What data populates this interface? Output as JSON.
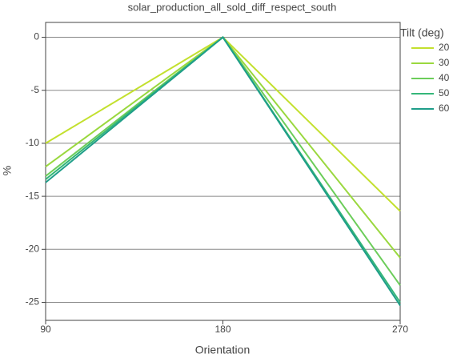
{
  "chart_data": {
    "type": "line",
    "title": "solar_production_all_sold_diff_respect_south",
    "x_label": "Orientation",
    "y_label": "%",
    "x": [
      90,
      180,
      270
    ],
    "legend_title": "Tilt (deg)",
    "series": [
      {
        "name": "20",
        "color": "#c3e02e",
        "values": [
          -10,
          0,
          -16.4
        ]
      },
      {
        "name": "30",
        "color": "#9ad83e",
        "values": [
          -12.2,
          0,
          -20.8
        ]
      },
      {
        "name": "40",
        "color": "#6ccd5a",
        "values": [
          -13.1,
          0,
          -23.4
        ]
      },
      {
        "name": "50",
        "color": "#35b779",
        "values": [
          -13.4,
          0,
          -25.0
        ]
      },
      {
        "name": "60",
        "color": "#1f9e89",
        "values": [
          -13.7,
          0,
          -25.3
        ]
      }
    ],
    "xlim": [
      90,
      270
    ],
    "xticks": [
      90,
      180,
      270
    ],
    "ylim": [
      -26.7,
      1.4
    ],
    "yticks": [
      -25,
      -20,
      -15,
      -10,
      -5,
      0
    ],
    "grid": true,
    "legend": "right"
  }
}
